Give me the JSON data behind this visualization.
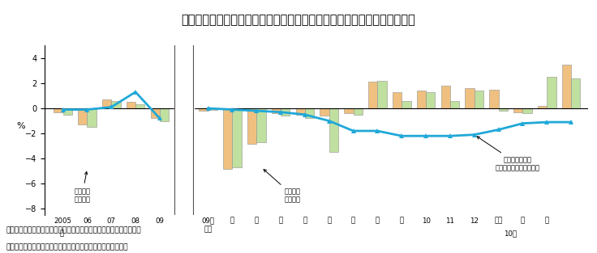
{
  "title": "図２－７　家計消費支出と消費者物価指数の対前年（同月）増減率の推移",
  "title_bg": "#f2c8c8",
  "ylabel": "%",
  "ylim": [
    -8.5,
    5
  ],
  "yticks": [
    -8,
    -6,
    -4,
    -2,
    0,
    2,
    4
  ],
  "footer_line1": "資料：総務省「消費者物価指数」、「家計調査（二人以上の世帯）」",
  "footer_line2": "　注：消費支出の実質化には持家の帰属家賃を除く総合を使用",
  "color_nominal": "#f0c080",
  "color_real": "#c0e0a0",
  "color_cpi": "#20a8d8",
  "annotation_cpi": "消費者物価指数\n（生鮮食品を除く総合）",
  "annotation_nominal": "消費支出\n（名目）",
  "annotation_real": "消費支出\n（実質）",
  "nominal_bars_left": [
    -0.3,
    -1.3,
    0.7,
    0.5,
    -0.8
  ],
  "real_bars_left": [
    -0.5,
    -1.5,
    0.6,
    0.3,
    -1.0
  ],
  "cpi_line_left": [
    -0.1,
    -0.1,
    0.1,
    1.3,
    -0.8
  ],
  "nominal_bars_right": [
    -0.2,
    -4.8,
    -2.8,
    -0.4,
    -0.5,
    -0.6,
    -0.4,
    2.1,
    1.3,
    1.4,
    1.8,
    1.6,
    1.5,
    -0.3,
    0.2,
    3.5
  ],
  "real_bars_right": [
    -0.1,
    -4.7,
    -2.7,
    -0.6,
    -0.8,
    -3.5,
    -0.5,
    2.2,
    0.6,
    1.3,
    0.6,
    1.4,
    -0.2,
    -0.4,
    2.5,
    2.4
  ],
  "cpi_line_right": [
    0.0,
    -0.1,
    -0.2,
    -0.3,
    -0.5,
    -1.0,
    -1.8,
    -1.8,
    -2.2,
    -2.2,
    -2.2,
    -2.1,
    -1.7,
    -1.2,
    -1.1,
    -1.1
  ]
}
